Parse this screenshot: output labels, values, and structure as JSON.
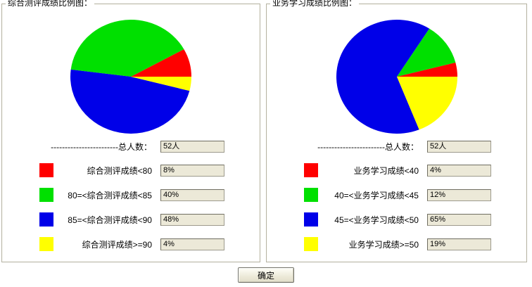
{
  "panels": [
    {
      "title": "综合测评成绩比例图：",
      "total_label": "------------------------总人数：",
      "total_value": "52人",
      "legend": [
        {
          "label": "综合测评成绩<80",
          "value": "8%",
          "color": "#ff0000",
          "color_name": "red"
        },
        {
          "label": "80=<综合测评成绩<85",
          "value": "40%",
          "color": "#00e000",
          "color_name": "green"
        },
        {
          "label": "85=<综合测评成绩<90",
          "value": "48%",
          "color": "#0000e8",
          "color_name": "blue"
        },
        {
          "label": "综合测评成绩>=90",
          "value": "4%",
          "color": "#ffff00",
          "color_name": "yellow"
        }
      ]
    },
    {
      "title": "业务学习成绩比例图：",
      "total_label": "------------------------总人数：",
      "total_value": "52人",
      "legend": [
        {
          "label": "业务学习成绩<40",
          "value": "4%",
          "color": "#ff0000",
          "color_name": "red"
        },
        {
          "label": "40=<业务学习成绩<45",
          "value": "12%",
          "color": "#00e000",
          "color_name": "green"
        },
        {
          "label": "45=<业务学习成绩<50",
          "value": "65%",
          "color": "#0000e8",
          "color_name": "blue"
        },
        {
          "label": "业务学习成绩>=50",
          "value": "19%",
          "color": "#ffff00",
          "color_name": "yellow"
        }
      ]
    }
  ],
  "chart_data": [
    {
      "type": "pie",
      "title": "综合测评成绩比例图",
      "categories": [
        "综合测评成绩<80",
        "80=<综合测评成绩<85",
        "85=<综合测评成绩<90",
        "综合测评成绩>=90"
      ],
      "values": [
        8,
        40,
        48,
        4
      ],
      "colors": [
        "#ff0000",
        "#00e000",
        "#0000e8",
        "#ffff00"
      ],
      "total_count_label": "总人数",
      "total_count": "52人",
      "start_angle_deg": 0,
      "direction": "counterclockwise",
      "legend_position": "below"
    },
    {
      "type": "pie",
      "title": "业务学习成绩比例图",
      "categories": [
        "业务学习成绩<40",
        "40=<业务学习成绩<45",
        "45=<业务学习成绩<50",
        "业务学习成绩>=50"
      ],
      "values": [
        4,
        12,
        65,
        19
      ],
      "colors": [
        "#ff0000",
        "#00e000",
        "#0000e8",
        "#ffff00"
      ],
      "total_count_label": "总人数",
      "total_count": "52人",
      "start_angle_deg": 0,
      "direction": "counterclockwise",
      "legend_position": "below"
    }
  ],
  "footer": {
    "ok_label": "确定"
  }
}
